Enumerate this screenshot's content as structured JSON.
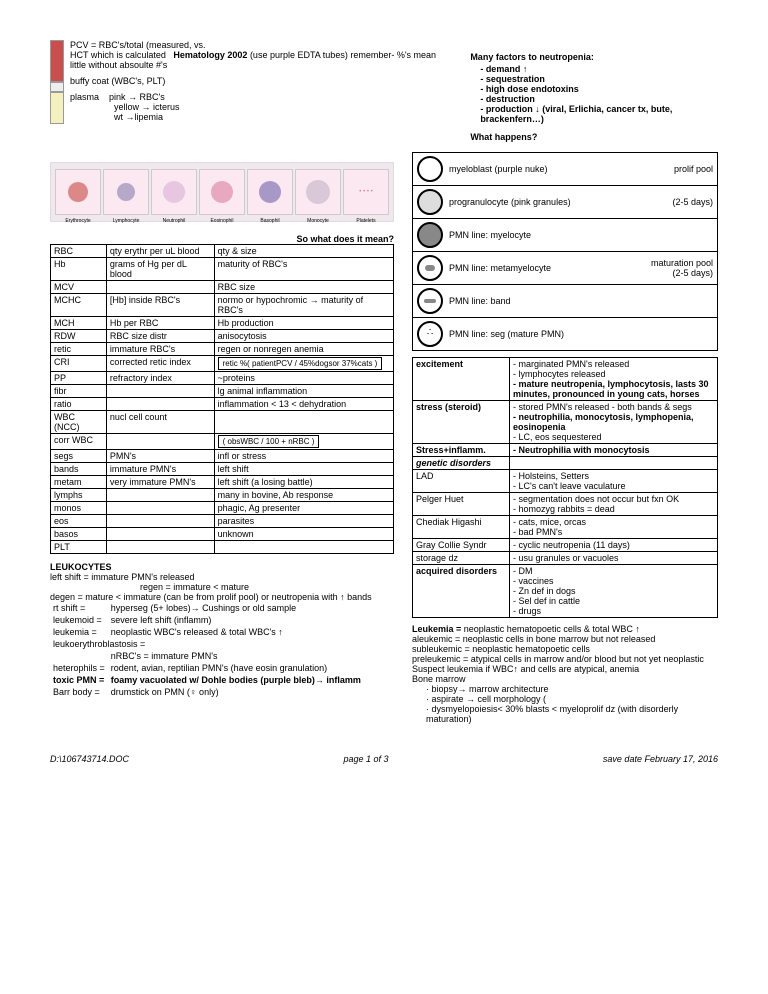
{
  "header": {
    "pcv_line": "PCV = RBC's/total (measured, vs.",
    "hct_line": "HCT which is calculated",
    "title": "Hematology 2002",
    "title_note": "(use purple EDTA tubes)  remember- %'s mean little without absoulte #'s",
    "buffy": "buffy coat (WBC's, PLT)",
    "plasma_label": "plasma",
    "plasma_pink": "pink → RBC's",
    "plasma_yellow": "yellow → icterus",
    "plasma_wt": "wt →lipemia"
  },
  "neutropenia": {
    "title": "Many factors to neutropenia:",
    "items": [
      "demand ↑",
      "sequestration",
      "high dose endotoxins",
      "destruction",
      "production ↓ (viral, Erlichia, cancer tx, bute, brackenfern…)"
    ],
    "what": "What happens?"
  },
  "cell_labels": [
    "Erythrocyte",
    "Lymphocyte",
    "Neutrophil",
    "Eosinophil",
    "Basophil",
    "Monocyte",
    "Platelets"
  ],
  "mean_title": "So what does it mean?",
  "rows_defs": [
    [
      "RBC",
      "qty erythr per uL blood",
      "qty & size"
    ],
    [
      "Hb",
      "grams of Hg per dL blood",
      "maturity of RBC's"
    ],
    [
      "MCV",
      "",
      "RBC size"
    ],
    [
      "MCHC",
      "[Hb] inside RBC's",
      "normo or hypochromic → maturity of RBC's"
    ],
    [
      "MCH",
      "Hb per RBC",
      "Hb production"
    ],
    [
      "RDW",
      "RBC size distr",
      "anisocytosis"
    ],
    [
      "retic",
      "immature RBC's",
      "regen or nonregen anemia"
    ],
    [
      "CRI",
      "corrected retic index",
      "retic %( patientPCV / 45%dogsor 37%cats )"
    ],
    [
      "PP",
      "refractory index",
      "~proteins"
    ],
    [
      "fibr",
      "",
      "lg animal inflammation"
    ],
    [
      "ratio",
      "",
      "inflammation < 13 < dehydration"
    ],
    [
      "WBC (NCC)",
      "nucl cell count",
      ""
    ],
    [
      "corr WBC",
      "",
      "( obsWBC / 100 + nRBC )"
    ],
    [
      "segs",
      "PMN's",
      "infl or stress"
    ],
    [
      "bands",
      "immature PMN's",
      "left shift"
    ],
    [
      "metam",
      "very immature PMN's",
      "left shift (a losing battle)"
    ],
    [
      "lymphs",
      "",
      "many in bovine, Ab response"
    ],
    [
      "monos",
      "",
      "phagic, Ag presenter"
    ],
    [
      "eos",
      "",
      "parasites"
    ],
    [
      "basos",
      "",
      "unknown"
    ],
    [
      "PLT",
      "",
      ""
    ]
  ],
  "leuk": {
    "title": "LEUKOCYTES",
    "left_shift": "left shift =  immature PMN's released",
    "regen": "regen = immature < mature",
    "degen": "degen = mature < immature (can be from prolif pool) or neutropenia with ↑ bands",
    "rt": "rt shift =",
    "rt_v": "hyperseg (5+ lobes)→ Cushings or old sample",
    "leukemoid": "leukemoid =",
    "leukemoid_v": "severe left shift (inflamm)",
    "leukemia": "leukemia =",
    "leukemia_v": "neoplastic WBC's released & total WBC's ↑",
    "lerb": "leukoerythroblastosis =",
    "lerb_v": "nRBC's = immature PMN's",
    "hetero": "heterophils =",
    "hetero_v": "rodent, avian, reptilian PMN's (have eosin granulation)",
    "toxic": "toxic PMN =",
    "toxic_v": "foamy vacuolated w/ Dohle bodies (purple bleb)→ inflamm",
    "barr": "Barr body =",
    "barr_v": "drumstick on PMN (♀ only)"
  },
  "dev": {
    "r1": "myeloblast (purple nuke)",
    "r1b": "prolif pool",
    "r1c": "(2-5 days)",
    "r2": "progranulocyte (pink granules)",
    "r3": "PMN line:  myelocyte",
    "r4": "PMN line:  metamyelocyte",
    "r4b": "maturation pool",
    "r4c": "(2-5 days)",
    "r5": "PMN line:  band",
    "r6": "PMN line:  seg (mature PMN)"
  },
  "cond": [
    [
      "excitement",
      "- marginated PMN's released\n- lymphocytes released\n- mature neutropenia, lymphocytosis, lasts 30 minutes, pronounced in young cats, horses"
    ],
    [
      "stress (steroid)",
      "- stored PMN's released - both bands & segs\n- neutrophilia, monocytosis, lymphopenia, eosinopenia\n- LC, eos sequestered"
    ],
    [
      "Stress+inflamm.",
      "- Neutrophilia with monocytosis"
    ],
    [
      "genetic disorders",
      ""
    ],
    [
      "LAD",
      "- Holsteins, Setters\n- LC's can't leave vaculature"
    ],
    [
      "Pelger Huet",
      "- segmentation does not occur but fxn OK\n- homozyg rabbits = dead"
    ],
    [
      "Chediak Higashi",
      "- cats, mice, orcas\n- bad PMN's"
    ],
    [
      "Gray Collie Syndr",
      "- cyclic neutropenia (11 days)"
    ],
    [
      "storage dz",
      "- usu granules or vacuoles"
    ],
    [
      "acquired disorders",
      "- DM\n- vaccines\n- Zn def in dogs\n- Sel def in cattle\n- drugs"
    ]
  ],
  "leukemia_block": {
    "l1": "Leukemia = neoplastic hematopoetic cells & total WBC ↑",
    "l2": "aleukemic = neoplastic cells in bone marrow but not released",
    "l3": "subleukemic = neoplastic hematopoetic cells",
    "l4": "preleukemic = atypical cells in marrow and/or blood but not yet neoplastic",
    "l5": "Suspect leukemia if WBC↑ and cells are atypical, anemia",
    "l6": "Bone marrow",
    "b1": "biopsy→ marrow architecture",
    "b2": "aspirate → cell morphology (",
    "b3": "dysmyelopoiesis< 30% blasts < myeloprolif dz (with disorderly maturation)"
  },
  "footer": {
    "path": "D:\\106743714.DOC",
    "page": "page 1 of 3",
    "date": "save date February 17, 2016"
  }
}
